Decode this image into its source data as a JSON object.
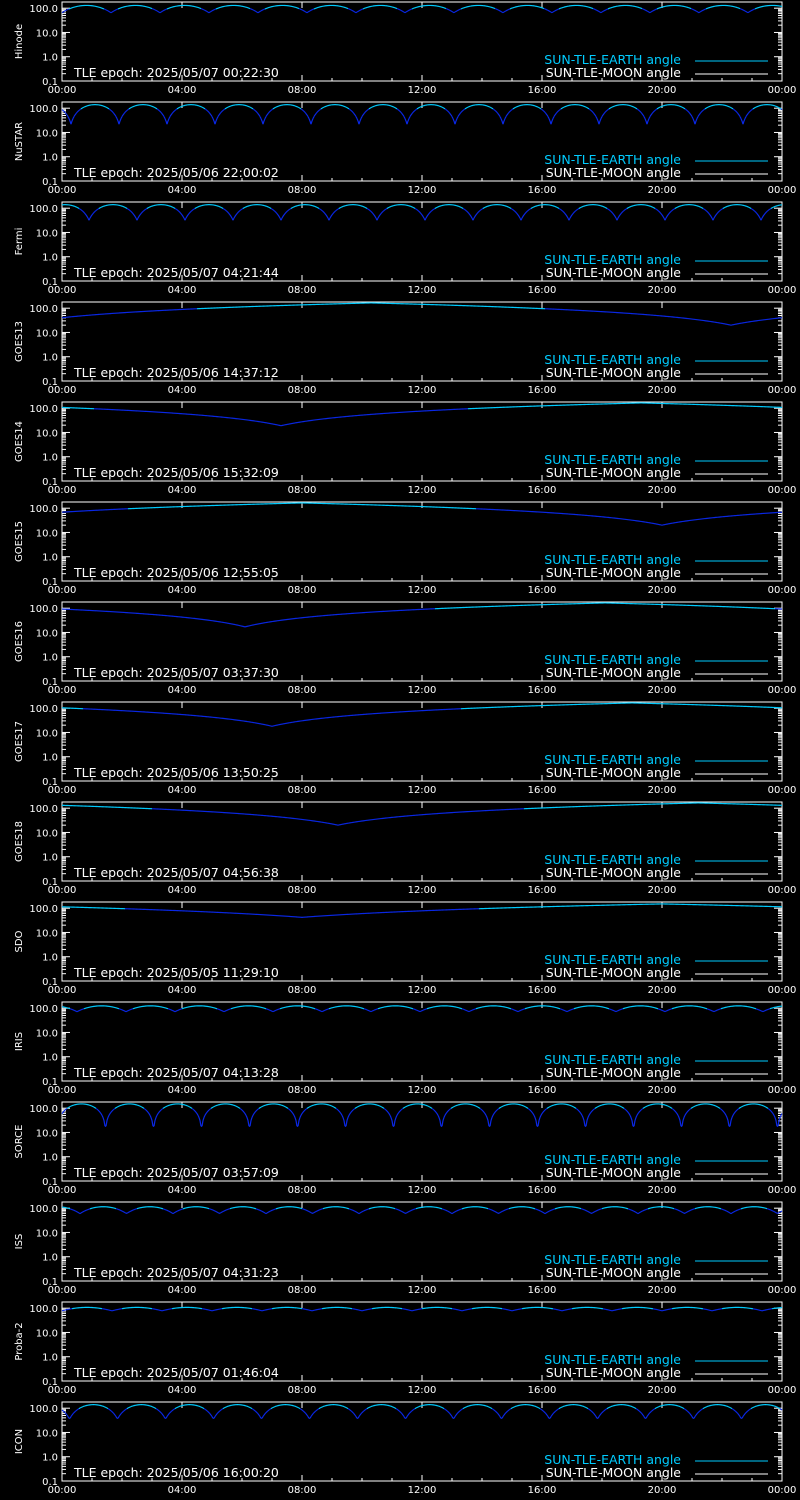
{
  "colors": {
    "background": "#000000",
    "axes": "#ffffff",
    "earth_angle": "#00ccff",
    "earth_angle_alt": "#0a28e6",
    "moon_angle": "#ffffff"
  },
  "x_ticks": [
    "00:00",
    "04:00",
    "08:00",
    "12:00",
    "16:00",
    "20:00",
    "00:00"
  ],
  "y_ticks": [
    "100.0",
    "10.0",
    "1.0",
    "0.1"
  ],
  "legend": {
    "earth": "SUN-TLE-EARTH angle",
    "moon": "SUN-TLE-MOON angle"
  },
  "chart_data": [
    {
      "type": "line",
      "ylabel": "Hinode",
      "annotation": "TLE epoch: 2025/05/07 00:22:30",
      "xlim": [
        0,
        24
      ],
      "ylim": [
        0.1,
        180
      ],
      "yscale": "log",
      "series": [
        {
          "curve": "periodic",
          "period_h": 1.633,
          "phase_h": 0.0,
          "max": 130,
          "min": 65
        }
      ]
    },
    {
      "type": "line",
      "ylabel": "NuSTAR",
      "annotation": "TLE epoch: 2025/05/06 22:00:02",
      "xlim": [
        0,
        24
      ],
      "ylim": [
        0.1,
        180
      ],
      "yscale": "log",
      "series": [
        {
          "curve": "periodic",
          "period_h": 1.6,
          "phase_h": 0.3,
          "max": 140,
          "min": 22
        }
      ]
    },
    {
      "type": "line",
      "ylabel": "Fermi",
      "annotation": "TLE epoch: 2025/05/07 04:21:44",
      "xlim": [
        0,
        24
      ],
      "ylim": [
        0.1,
        180
      ],
      "yscale": "log",
      "series": [
        {
          "curve": "periodic",
          "period_h": 1.6,
          "phase_h": 0.9,
          "max": 140,
          "min": 32
        }
      ]
    },
    {
      "type": "line",
      "ylabel": "GOES13",
      "annotation": "TLE epoch: 2025/05/06 14:37:12",
      "xlim": [
        0,
        24
      ],
      "ylim": [
        0.1,
        180
      ],
      "yscale": "log",
      "series": [
        {
          "curve": "diurnal",
          "min_h": 22.3,
          "max": 165,
          "min": 20
        }
      ]
    },
    {
      "type": "line",
      "ylabel": "GOES14",
      "annotation": "TLE epoch: 2025/05/06 15:32:09",
      "xlim": [
        0,
        24
      ],
      "ylim": [
        0.1,
        180
      ],
      "yscale": "log",
      "series": [
        {
          "curve": "diurnal",
          "min_h": 7.3,
          "max": 165,
          "min": 19
        }
      ]
    },
    {
      "type": "line",
      "ylabel": "GOES15",
      "annotation": "TLE epoch: 2025/05/06 12:55:05",
      "xlim": [
        0,
        24
      ],
      "ylim": [
        0.1,
        180
      ],
      "yscale": "log",
      "series": [
        {
          "curve": "diurnal",
          "min_h": 20.0,
          "max": 165,
          "min": 20
        }
      ]
    },
    {
      "type": "line",
      "ylabel": "GOES16",
      "annotation": "TLE epoch: 2025/05/07 03:37:30",
      "xlim": [
        0,
        24
      ],
      "ylim": [
        0.1,
        180
      ],
      "yscale": "log",
      "series": [
        {
          "curve": "diurnal",
          "min_h": 6.1,
          "max": 165,
          "min": 17
        }
      ]
    },
    {
      "type": "line",
      "ylabel": "GOES17",
      "annotation": "TLE epoch: 2025/05/06 13:50:25",
      "xlim": [
        0,
        24
      ],
      "ylim": [
        0.1,
        180
      ],
      "yscale": "log",
      "series": [
        {
          "curve": "diurnal",
          "min_h": 7.0,
          "max": 165,
          "min": 18
        }
      ]
    },
    {
      "type": "line",
      "ylabel": "GOES18",
      "annotation": "TLE epoch: 2025/05/07 04:56:38",
      "xlim": [
        0,
        24
      ],
      "ylim": [
        0.1,
        180
      ],
      "yscale": "log",
      "series": [
        {
          "curve": "diurnal",
          "min_h": 9.2,
          "max": 165,
          "min": 20
        }
      ]
    },
    {
      "type": "line",
      "ylabel": "SDO",
      "annotation": "TLE epoch: 2025/05/05 11:29:10",
      "xlim": [
        0,
        24
      ],
      "ylim": [
        0.1,
        180
      ],
      "yscale": "log",
      "series": [
        {
          "curve": "diurnal",
          "min_h": 8.0,
          "max": 150,
          "min": 42
        }
      ]
    },
    {
      "type": "line",
      "ylabel": "IRIS",
      "annotation": "TLE epoch: 2025/05/07 04:13:28",
      "xlim": [
        0,
        24
      ],
      "ylim": [
        0.1,
        180
      ],
      "yscale": "log",
      "series": [
        {
          "curve": "periodic",
          "period_h": 1.633,
          "phase_h": 0.5,
          "max": 125,
          "min": 72
        }
      ]
    },
    {
      "type": "line",
      "ylabel": "SORCE",
      "annotation": "TLE epoch: 2025/05/07 03:57:09",
      "xlim": [
        0,
        24
      ],
      "ylim": [
        0.1,
        180
      ],
      "yscale": "log",
      "series": [
        {
          "curve": "periodic",
          "period_h": 1.6,
          "phase_h": 1.45,
          "max": 150,
          "min": 1.5,
          "sharp": true
        }
      ]
    },
    {
      "type": "line",
      "ylabel": "ISS",
      "annotation": "TLE epoch: 2025/05/07 04:31:23",
      "xlim": [
        0,
        24
      ],
      "ylim": [
        0.1,
        180
      ],
      "yscale": "log",
      "series": [
        {
          "curve": "periodic",
          "period_h": 1.55,
          "phase_h": 0.6,
          "max": 115,
          "min": 60
        }
      ]
    },
    {
      "type": "line",
      "ylabel": "Proba-2",
      "annotation": "TLE epoch: 2025/05/07 01:46:04",
      "xlim": [
        0,
        24
      ],
      "ylim": [
        0.1,
        180
      ],
      "yscale": "log",
      "series": [
        {
          "curve": "periodic",
          "period_h": 1.667,
          "phase_h": 0.0,
          "max": 108,
          "min": 78
        }
      ]
    },
    {
      "type": "line",
      "ylabel": "ICON",
      "annotation": "TLE epoch: 2025/05/06 16:00:20",
      "xlim": [
        0,
        24
      ],
      "ylim": [
        0.1,
        180
      ],
      "yscale": "log",
      "series": [
        {
          "curve": "periodic",
          "period_h": 1.6,
          "phase_h": 0.25,
          "max": 140,
          "min": 35
        }
      ]
    }
  ]
}
